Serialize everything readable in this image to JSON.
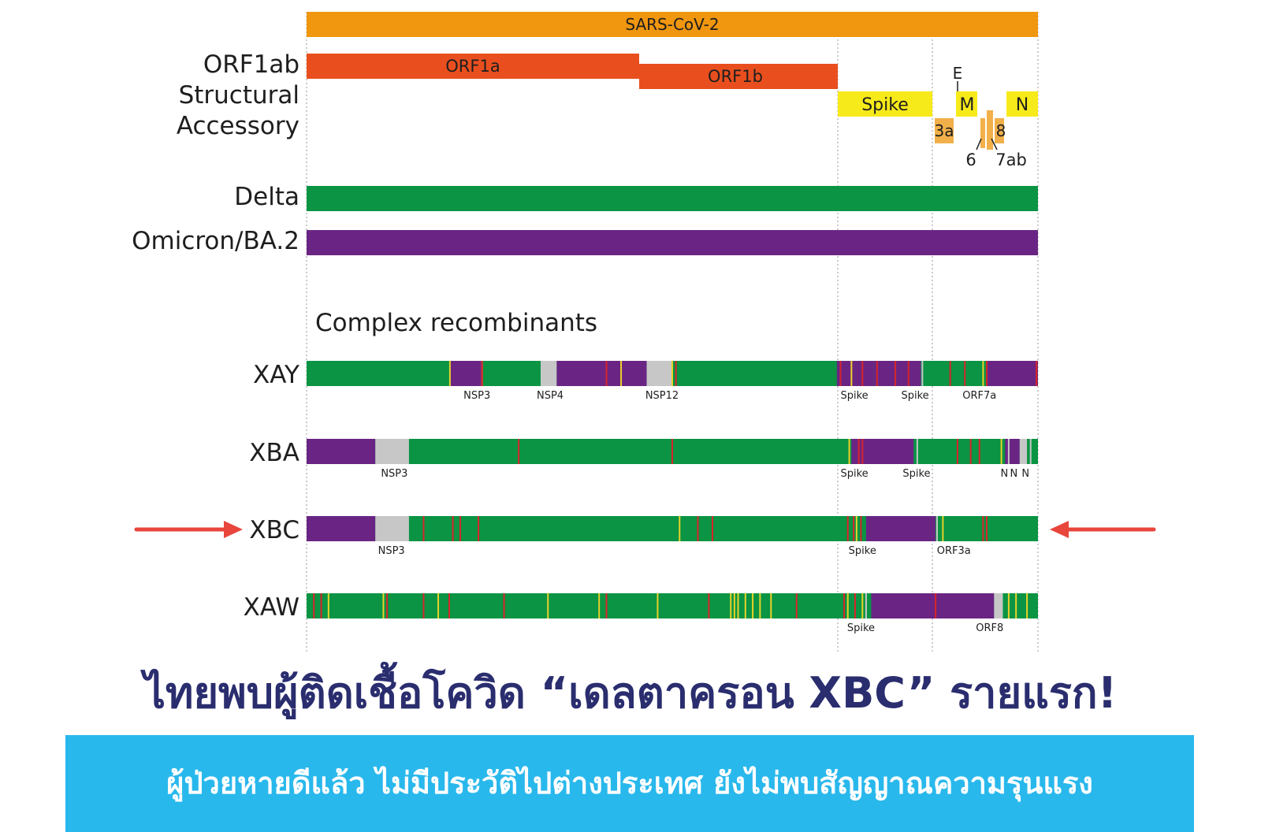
{
  "genome": {
    "title": "SARS-CoV-2",
    "row_labels": {
      "orf1ab": "ORF1ab",
      "structural": "Structural",
      "accessory": "Accessory"
    },
    "genes": {
      "orf1a": "ORF1a",
      "orf1b": "ORF1b",
      "spike": "Spike",
      "m": "M",
      "n": "N",
      "e": "E",
      "a3": "3a",
      "a6": "6",
      "a7ab": "7ab",
      "a8": "8"
    }
  },
  "parents": [
    {
      "name": "Delta",
      "color": "#0a9444"
    },
    {
      "name": "Omicron/BA.2",
      "color": "#6a2584"
    }
  ],
  "section_title": "Complex recombinants",
  "colors": {
    "delta": "#0a9444",
    "omicron": "#6a2584",
    "gray": "#c7c7c7",
    "red": "#d8242a",
    "yellow": "#e8d22a",
    "orange": "#f0960f",
    "orf1": "#e94f1e",
    "structural": "#f7ea1a",
    "accessory": "#f2b04a",
    "arrow": "#e8453c"
  },
  "recombinants": [
    {
      "name": "XAY",
      "highlight": false,
      "segments": [
        [
          0,
          0.196,
          "omicron"
        ],
        [
          0,
          1,
          "delta"
        ],
        [
          0.196,
          0.241,
          "omicron"
        ],
        [
          0.32,
          0.342,
          "gray"
        ],
        [
          0.342,
          0.465,
          "omicron"
        ],
        [
          0.465,
          0.5,
          "gray"
        ],
        [
          0.725,
          0.775,
          "omicron"
        ],
        [
          0.775,
          0.84,
          "omicron"
        ],
        [
          0.93,
          0.965,
          "omicron"
        ],
        [
          0.965,
          1.0,
          "omicron"
        ]
      ],
      "lines": [
        [
          0.196,
          "yellow"
        ],
        [
          0.24,
          "yellow"
        ],
        [
          0.24,
          "red"
        ],
        [
          0.41,
          "red"
        ],
        [
          0.43,
          "yellow"
        ],
        [
          0.5,
          "yellow"
        ],
        [
          0.505,
          "red"
        ],
        [
          0.73,
          "red"
        ],
        [
          0.745,
          "yellow"
        ],
        [
          0.76,
          "red"
        ],
        [
          0.78,
          "red"
        ],
        [
          0.805,
          "red"
        ],
        [
          0.823,
          "red"
        ],
        [
          0.842,
          "gray"
        ],
        [
          0.88,
          "red"
        ],
        [
          0.9,
          "red"
        ],
        [
          0.925,
          "yellow"
        ],
        [
          0.93,
          "red"
        ],
        [
          0.998,
          "red"
        ]
      ],
      "markers": [
        "NSP3",
        "NSP4",
        "NSP12",
        "Spike",
        "Spike",
        "ORF7a"
      ],
      "marker_pos": [
        0.233,
        0.333,
        0.486,
        0.749,
        0.832,
        0.92
      ]
    },
    {
      "name": "XBA",
      "highlight": false,
      "segments": [
        [
          0,
          1,
          "delta"
        ],
        [
          0,
          0.094,
          "omicron"
        ],
        [
          0.094,
          0.14,
          "gray"
        ],
        [
          0.745,
          0.83,
          "omicron"
        ],
        [
          0.955,
          0.975,
          "omicron"
        ],
        [
          0.975,
          0.985,
          "gray"
        ]
      ],
      "lines": [
        [
          0.29,
          "red"
        ],
        [
          0.5,
          "red"
        ],
        [
          0.742,
          "yellow"
        ],
        [
          0.755,
          "red"
        ],
        [
          0.76,
          "red"
        ],
        [
          0.835,
          "gray"
        ],
        [
          0.89,
          "red"
        ],
        [
          0.908,
          "red"
        ],
        [
          0.92,
          "red"
        ],
        [
          0.95,
          "yellow"
        ],
        [
          0.96,
          "gray"
        ],
        [
          0.99,
          "gray"
        ]
      ],
      "markers": [
        "NSP3",
        "Spike",
        "Spike",
        "N",
        "N",
        "N"
      ],
      "marker_pos": [
        0.12,
        0.749,
        0.834,
        0.954,
        0.967,
        0.983
      ]
    },
    {
      "name": "XBC",
      "highlight": true,
      "segments": [
        [
          0,
          1,
          "delta"
        ],
        [
          0,
          0.094,
          "omicron"
        ],
        [
          0.094,
          0.14,
          "gray"
        ],
        [
          0.765,
          0.86,
          "omicron"
        ]
      ],
      "lines": [
        [
          0.16,
          "red"
        ],
        [
          0.2,
          "red"
        ],
        [
          0.21,
          "red"
        ],
        [
          0.235,
          "red"
        ],
        [
          0.51,
          "yellow"
        ],
        [
          0.535,
          "red"
        ],
        [
          0.555,
          "red"
        ],
        [
          0.74,
          "red"
        ],
        [
          0.748,
          "red"
        ],
        [
          0.752,
          "yellow"
        ],
        [
          0.758,
          "red"
        ],
        [
          0.862,
          "gray"
        ],
        [
          0.87,
          "yellow"
        ],
        [
          0.925,
          "red"
        ],
        [
          0.93,
          "red"
        ]
      ],
      "markers": [
        "NSP3",
        "Spike",
        "ORF3a"
      ],
      "marker_pos": [
        0.116,
        0.76,
        0.885
      ]
    },
    {
      "name": "XAW",
      "highlight": false,
      "segments": [
        [
          0,
          1,
          "delta"
        ],
        [
          0.772,
          0.94,
          "omicron"
        ],
        [
          0.94,
          0.952,
          "gray"
        ]
      ],
      "lines": [
        [
          0.01,
          "red"
        ],
        [
          0.02,
          "red"
        ],
        [
          0.03,
          "yellow"
        ],
        [
          0.105,
          "yellow"
        ],
        [
          0.11,
          "red"
        ],
        [
          0.16,
          "red"
        ],
        [
          0.18,
          "yellow"
        ],
        [
          0.195,
          "red"
        ],
        [
          0.27,
          "red"
        ],
        [
          0.33,
          "yellow"
        ],
        [
          0.4,
          "yellow"
        ],
        [
          0.41,
          "red"
        ],
        [
          0.48,
          "yellow"
        ],
        [
          0.55,
          "red"
        ],
        [
          0.58,
          "yellow"
        ],
        [
          0.585,
          "yellow"
        ],
        [
          0.59,
          "yellow"
        ],
        [
          0.6,
          "yellow"
        ],
        [
          0.61,
          "yellow"
        ],
        [
          0.62,
          "yellow"
        ],
        [
          0.635,
          "yellow"
        ],
        [
          0.67,
          "red"
        ],
        [
          0.735,
          "red"
        ],
        [
          0.74,
          "yellow"
        ],
        [
          0.75,
          "red"
        ],
        [
          0.76,
          "yellow"
        ],
        [
          0.765,
          "gray"
        ],
        [
          0.86,
          "red"
        ],
        [
          0.96,
          "yellow"
        ],
        [
          0.97,
          "yellow"
        ],
        [
          0.985,
          "yellow"
        ]
      ],
      "markers": [
        "Spike",
        "ORF8"
      ],
      "marker_pos": [
        0.758,
        0.934
      ]
    }
  ],
  "headline": "ไทยพบผู้ติดเชื้อโควิด “เดลตาครอน XBC” รายแรก!",
  "subheadline": "ผู้ป่วยหายดีแล้ว ไม่มีประวัติไปต่างประเทศ ยังไม่พบสัญญาณความรุนแรง"
}
